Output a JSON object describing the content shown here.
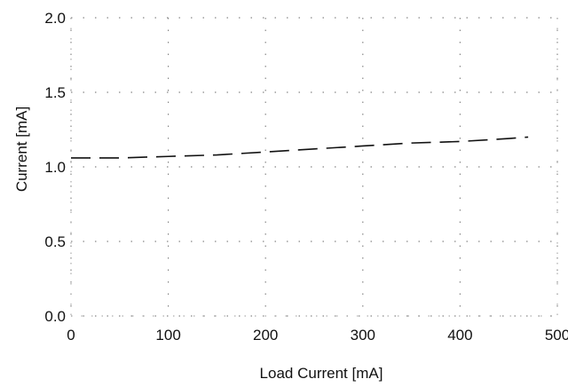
{
  "chart_data": {
    "type": "line",
    "xlabel": "Load Current [mA]",
    "ylabel": "Current [mA]",
    "xlim": [
      0,
      500
    ],
    "ylim": [
      0,
      2.0
    ],
    "x_ticks": [
      0,
      100,
      200,
      300,
      400,
      500
    ],
    "y_ticks": [
      0.0,
      0.5,
      1.0,
      1.5,
      2.0
    ],
    "x_tick_labels": [
      "0",
      "100",
      "200",
      "300",
      "400",
      "500"
    ],
    "y_tick_labels": [
      "0.0",
      "0.5",
      "1.0",
      "1.5",
      "2.0"
    ],
    "grid": true,
    "grid_style": "dotted",
    "series": [
      {
        "color": "#111111",
        "line_style": "dashed",
        "x": [
          0,
          50,
          100,
          150,
          200,
          250,
          300,
          350,
          400,
          450,
          470
        ],
        "y": [
          1.06,
          1.06,
          1.07,
          1.08,
          1.1,
          1.12,
          1.14,
          1.16,
          1.17,
          1.19,
          1.2
        ]
      }
    ]
  }
}
